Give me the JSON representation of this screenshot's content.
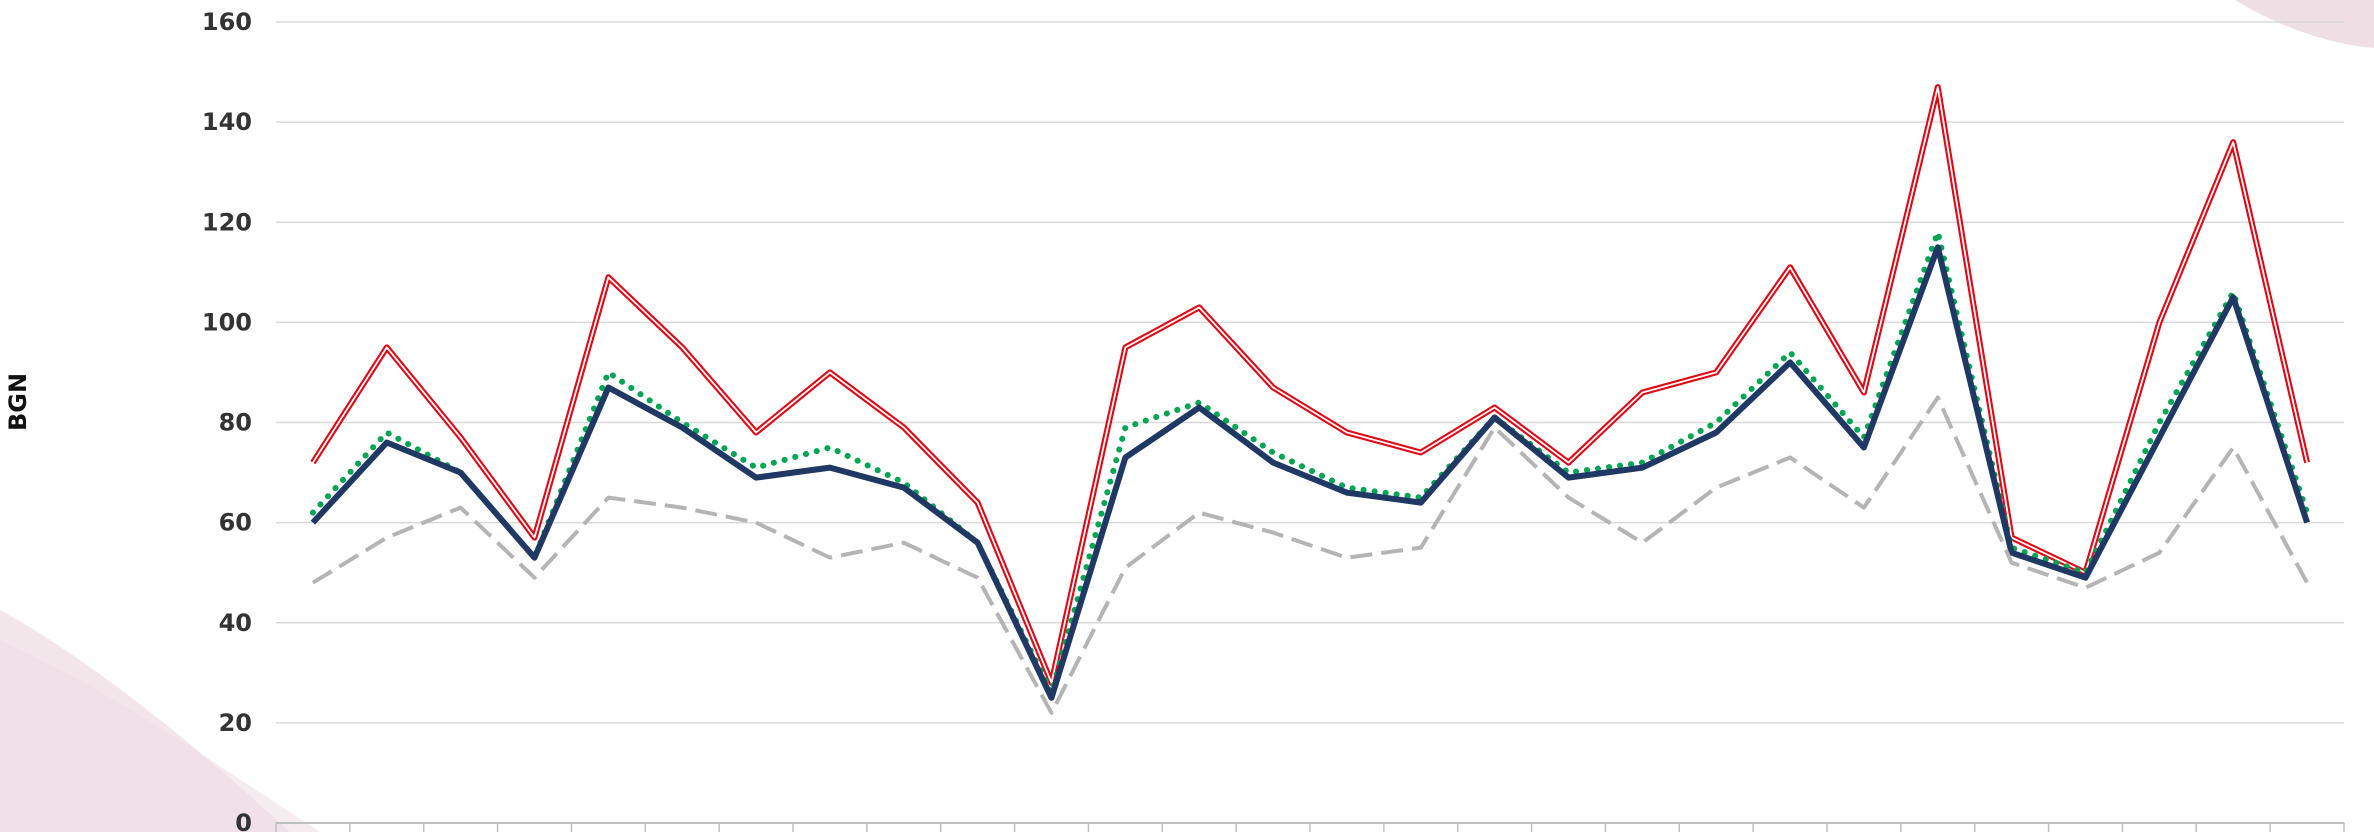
{
  "chart_data": {
    "type": "line",
    "title": "",
    "xlabel": "",
    "ylabel": "BGN",
    "ylim": [
      0,
      160
    ],
    "yticks": [
      0,
      20,
      40,
      60,
      80,
      100,
      120,
      140,
      160
    ],
    "grid": true,
    "categories_count": 28,
    "series": [
      {
        "color": "#e30613",
        "style": "double-line",
        "values": [
          72,
          95,
          77,
          57,
          109,
          95,
          78,
          90,
          79,
          64,
          28,
          95,
          103,
          87,
          78,
          74,
          83,
          72,
          86,
          90,
          111,
          86,
          147,
          57,
          50,
          100,
          136,
          72
        ]
      },
      {
        "color": "#00a651",
        "style": "dotted",
        "values": [
          62,
          78,
          70,
          53,
          90,
          80,
          71,
          75,
          68,
          56,
          26,
          79,
          84,
          74,
          67,
          65,
          81,
          70,
          72,
          80,
          94,
          77,
          118,
          55,
          50,
          80,
          106,
          62
        ]
      },
      {
        "color": "#1f3864",
        "style": "solid",
        "values": [
          60,
          76,
          70,
          53,
          87,
          79,
          69,
          71,
          67,
          56,
          25,
          73,
          83,
          72,
          66,
          64,
          81,
          69,
          71,
          78,
          92,
          75,
          115,
          54,
          49,
          77,
          105,
          60
        ]
      },
      {
        "color": "#b4b4b4",
        "style": "dashed",
        "values": [
          48,
          57,
          63,
          49,
          65,
          63,
          60,
          53,
          56,
          49,
          22,
          51,
          62,
          58,
          53,
          55,
          79,
          65,
          56,
          67,
          73,
          63,
          85,
          52,
          47,
          54,
          75,
          48
        ]
      }
    ]
  },
  "colors": {
    "grid": "#d9d9d9",
    "axis": "#bfbfbf",
    "background_accent": "#ead7df"
  }
}
